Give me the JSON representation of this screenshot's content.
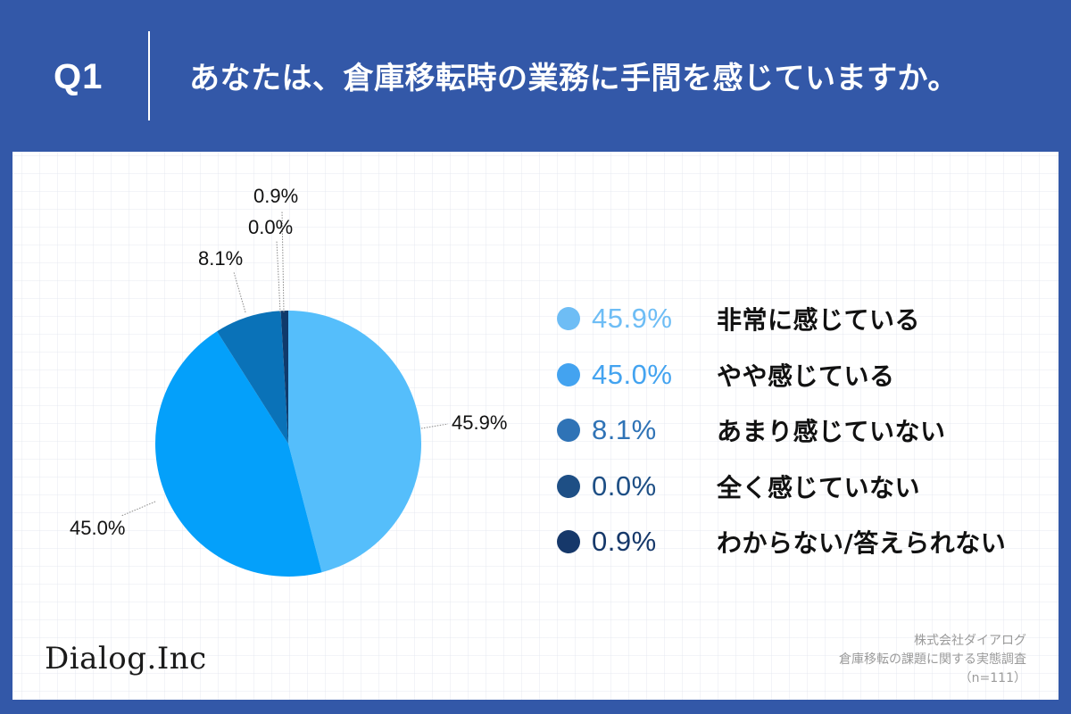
{
  "header": {
    "question_number": "Q1",
    "question_text": "あなたは、倉庫移転時の業務に手間を感じていますか。"
  },
  "colors": {
    "background": "#3358A8",
    "panel": "#FFFFFF"
  },
  "chart_data": {
    "type": "pie",
    "title": "あなたは、倉庫移転時の業務に手間を感じていますか。",
    "categories": [
      "非常に感じている",
      "やや感じている",
      "あまり感じていない",
      "全く感じていない",
      "わからない/答えられない"
    ],
    "values": [
      45.9,
      45.0,
      8.1,
      0.0,
      0.9
    ],
    "unit": "%",
    "value_labels": [
      "45.9%",
      "45.0%",
      "8.1%",
      "0.0%",
      "0.9%"
    ],
    "slice_colors": [
      "#55BEFB",
      "#04A0FA",
      "#0A72B8",
      "#1E4F85",
      "#0F3A6B"
    ],
    "start_angle_deg": 0,
    "direction": "clockwise",
    "legend_position": "right",
    "sample_size": "n=111"
  },
  "legend": {
    "items": [
      {
        "pct": "45.9%",
        "label": "非常に感じている",
        "dot_color": "#6EBDF5",
        "pct_color": "#6EBDF5"
      },
      {
        "pct": "45.0%",
        "label": "やや感じている",
        "dot_color": "#43A3F0",
        "pct_color": "#43A3F0"
      },
      {
        "pct": "8.1%",
        "label": "あまり感じていない",
        "dot_color": "#2F73B6",
        "pct_color": "#2F73B6"
      },
      {
        "pct": "0.0%",
        "label": "全く感じていない",
        "dot_color": "#1E4F85",
        "pct_color": "#1E4F85"
      },
      {
        "pct": "0.9%",
        "label": "わからない/答えられない",
        "dot_color": "#16386A",
        "pct_color": "#16386A"
      }
    ]
  },
  "footer": {
    "logo": "Dialog.Inc",
    "source_lines": [
      "株式会社ダイアログ",
      "倉庫移転の課題に関する実態調査",
      "（n=111）"
    ]
  }
}
